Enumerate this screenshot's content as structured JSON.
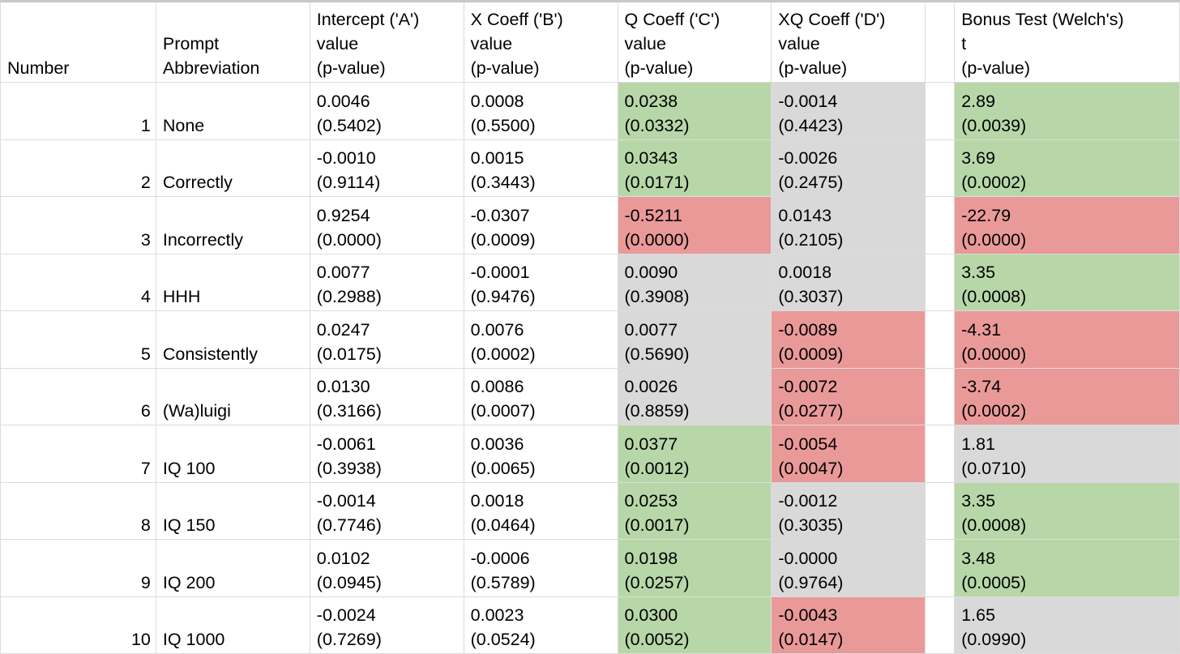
{
  "headers": [
    "Number",
    "Prompt\nAbbreviation",
    "Intercept ('A')\nvalue\n(p-value)",
    "X Coeff ('B')\nvalue\n(p-value)",
    "Q Coeff ('C')\nvalue\n(p-value)",
    "XQ Coeff ('D')\nvalue\n(p-value)",
    "",
    "Bonus Test (Welch's)\nt\n(p-value)"
  ],
  "colors": {
    "significant_positive": "#b7d7a8",
    "significant_negative": "#ea9999",
    "not_significant": "#d9d9d9"
  },
  "rows": [
    {
      "number": "1",
      "prompt": "None",
      "a": "0.0046\n(0.5402)",
      "b": "0.0008\n(0.5500)",
      "c": "0.0238\n(0.0332)",
      "c_color": "g",
      "d": "-0.0014\n(0.4423)",
      "d_color": "n",
      "t": "2.89\n(0.0039)",
      "t_color": "g"
    },
    {
      "number": "2",
      "prompt": "Correctly",
      "a": "-0.0010\n(0.9114)",
      "b": "0.0015\n(0.3443)",
      "c": "0.0343\n(0.0171)",
      "c_color": "g",
      "d": "-0.0026\n(0.2475)",
      "d_color": "n",
      "t": "3.69\n(0.0002)",
      "t_color": "g"
    },
    {
      "number": "3",
      "prompt": "Incorrectly",
      "a": "0.9254\n(0.0000)",
      "b": "-0.0307\n(0.0009)",
      "c": "-0.5211\n(0.0000)",
      "c_color": "r",
      "d": "0.0143\n(0.2105)",
      "d_color": "n",
      "t": "-22.79\n(0.0000)",
      "t_color": "r"
    },
    {
      "number": "4",
      "prompt": "HHH",
      "a": "0.0077\n(0.2988)",
      "b": "-0.0001\n(0.9476)",
      "c": "0.0090\n(0.3908)",
      "c_color": "n",
      "d": "0.0018\n(0.3037)",
      "d_color": "n",
      "t": "3.35\n(0.0008)",
      "t_color": "g"
    },
    {
      "number": "5",
      "prompt": "Consistently",
      "a": "0.0247\n(0.0175)",
      "b": "0.0076\n(0.0002)",
      "c": "0.0077\n(0.5690)",
      "c_color": "n",
      "d": "-0.0089\n(0.0009)",
      "d_color": "r",
      "t": "-4.31\n(0.0000)",
      "t_color": "r"
    },
    {
      "number": "6",
      "prompt": "(Wa)luigi",
      "a": "0.0130\n(0.3166)",
      "b": "0.0086\n(0.0007)",
      "c": "0.0026\n(0.8859)",
      "c_color": "n",
      "d": "-0.0072\n(0.0277)",
      "d_color": "r",
      "t": "-3.74\n(0.0002)",
      "t_color": "r"
    },
    {
      "number": "7",
      "prompt": "IQ 100",
      "a": "-0.0061\n(0.3938)",
      "b": "0.0036\n(0.0065)",
      "c": "0.0377\n(0.0012)",
      "c_color": "g",
      "d": "-0.0054\n(0.0047)",
      "d_color": "r",
      "t": "1.81\n(0.0710)",
      "t_color": "n"
    },
    {
      "number": "8",
      "prompt": "IQ 150",
      "a": "-0.0014\n(0.7746)",
      "b": "0.0018\n(0.0464)",
      "c": "0.0253\n(0.0017)",
      "c_color": "g",
      "d": "-0.0012\n(0.3035)",
      "d_color": "n",
      "t": "3.35\n(0.0008)",
      "t_color": "g"
    },
    {
      "number": "9",
      "prompt": "IQ 200",
      "a": "0.0102\n(0.0945)",
      "b": "-0.0006\n(0.5789)",
      "c": "0.0198\n(0.0257)",
      "c_color": "g",
      "d": "-0.0000\n(0.9764)",
      "d_color": "n",
      "t": "3.48\n(0.0005)",
      "t_color": "g"
    },
    {
      "number": "10",
      "prompt": "IQ 1000",
      "a": "-0.0024\n(0.7269)",
      "b": "0.0023\n(0.0524)",
      "c": "0.0300\n(0.0052)",
      "c_color": "g",
      "d": "-0.0043\n(0.0147)",
      "d_color": "r",
      "t": "1.65\n(0.0990)",
      "t_color": "n"
    }
  ]
}
